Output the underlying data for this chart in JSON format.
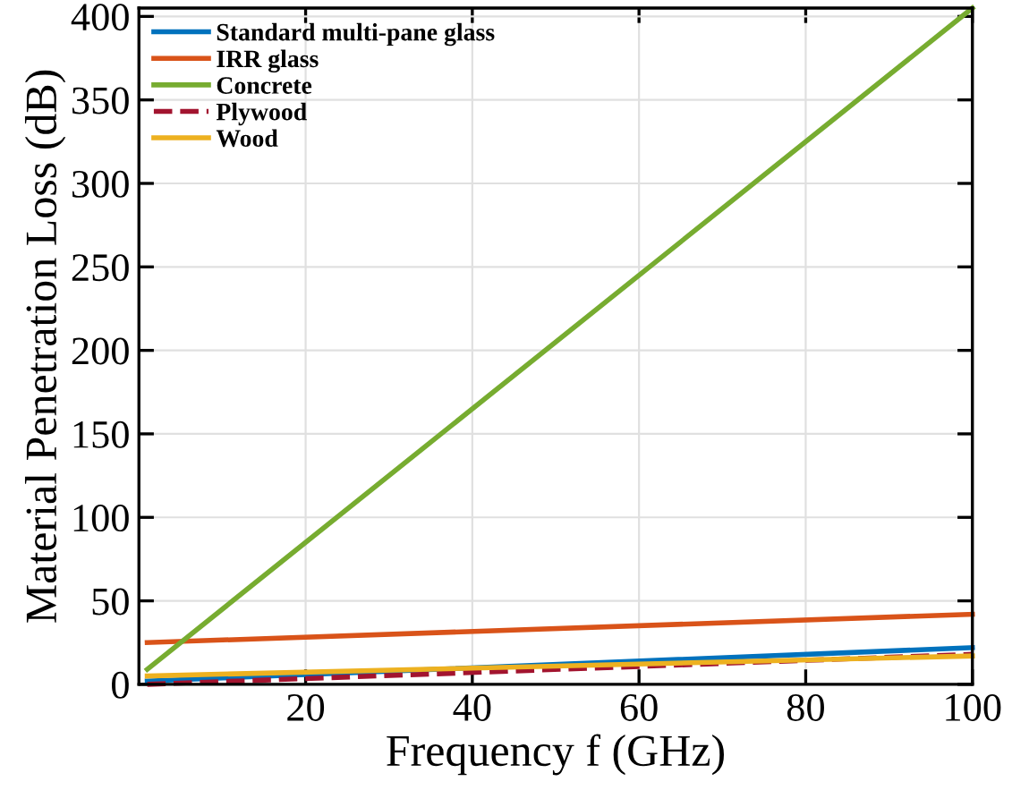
{
  "chart_data": {
    "type": "line",
    "xlabel": "Frequency f (GHz)",
    "ylabel": "Material Penetration Loss (dB)",
    "xlim": [
      0,
      100
    ],
    "xticks": [
      20,
      40,
      60,
      80,
      100
    ],
    "ylim": [
      0,
      405
    ],
    "yticks": [
      0,
      50,
      100,
      150,
      200,
      250,
      300,
      350,
      400
    ],
    "grid": true,
    "legend": "top left",
    "line_style": "solid",
    "marker": "none",
    "x": [
      1,
      100
    ],
    "series": [
      {
        "name": "Standard multi-pane glass",
        "color": "#0072bd",
        "values": [
          2,
          22
        ]
      },
      {
        "name": "IRR glass",
        "color": "#d95319",
        "values": [
          25,
          42
        ]
      },
      {
        "name": "Concrete",
        "color": "#77ac30",
        "values": [
          9,
          405
        ]
      },
      {
        "name": "Plywood",
        "color": "#a2142f",
        "values": [
          0,
          18
        ],
        "line_style": "dashed"
      },
      {
        "name": "Wood",
        "color": "#edb120",
        "values": [
          5,
          17
        ]
      }
    ]
  }
}
